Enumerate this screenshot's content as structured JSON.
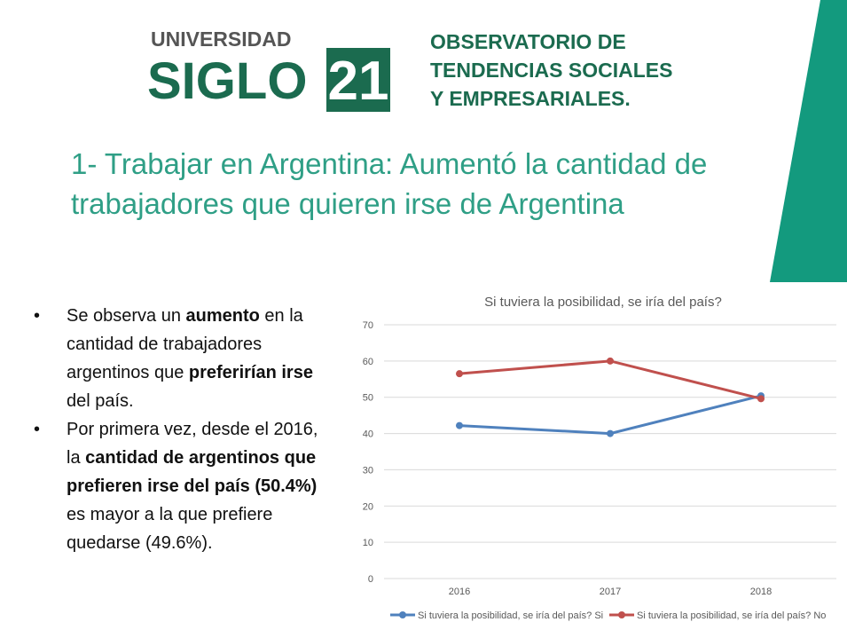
{
  "header": {
    "logo_top": "UNIVERSIDAD",
    "logo_main": "SIGLO",
    "logo_number": "21",
    "observatory": [
      "OBSERVATORIO DE",
      "TENDENCIAS SOCIALES",
      "Y EMPRESARIALES."
    ]
  },
  "title": "1- Trabajar en Argentina: Aumentó la cantidad de trabajadores que quieren irse de Argentina",
  "bullets": [
    [
      "Se observa un ",
      "aumento",
      " en la cantidad de trabajadores argentinos que ",
      "preferirían irse",
      " del país."
    ],
    [
      "Por primera vez, desde el 2016, la ",
      "cantidad de argentinos que prefieren irse del país (50.4%)",
      " es mayor a la que prefiere quedarse (49.6%)."
    ]
  ],
  "chart_data": {
    "type": "line",
    "title": "Si tuviera la posibilidad, se iría del país?",
    "categories": [
      "2016",
      "2017",
      "2018"
    ],
    "series": [
      {
        "name": "Si tuviera la posibilidad, se iría del país? Si",
        "color": "#4f81bd",
        "values": [
          42.2,
          40.0,
          50.4
        ]
      },
      {
        "name": "Si tuviera la posibilidad, se iría del país? No",
        "color": "#c0504d",
        "values": [
          56.5,
          60.0,
          49.6
        ]
      }
    ],
    "ylim": [
      0,
      70
    ],
    "yticks": [
      0,
      10,
      20,
      30,
      40,
      50,
      60,
      70
    ],
    "grid": true,
    "legend": "bottom"
  }
}
